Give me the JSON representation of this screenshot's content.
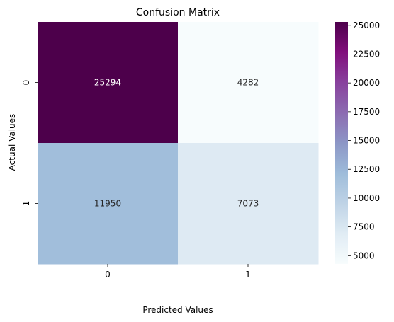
{
  "chart_data": {
    "type": "heatmap",
    "title": "Confusion Matrix",
    "xlabel": "Predicted Values",
    "ylabel": "Actual Values",
    "x_categories": [
      "0",
      "1"
    ],
    "y_categories": [
      "0",
      "1"
    ],
    "values": [
      [
        25294,
        4282
      ],
      [
        11950,
        7073
      ]
    ],
    "colormap": "BuPu",
    "colorbar": {
      "vmin": 4282,
      "vmax": 25294,
      "ticks": [
        5000,
        7500,
        10000,
        12500,
        15000,
        17500,
        20000,
        22500,
        25000
      ],
      "tick_labels": [
        "5000",
        "7500",
        "10000",
        "12500",
        "15000",
        "17500",
        "20000",
        "22500",
        "25000"
      ]
    },
    "colors": {
      "low": "#f7fcfd",
      "mid": "#8c96c6",
      "high": "#4d004b"
    }
  }
}
